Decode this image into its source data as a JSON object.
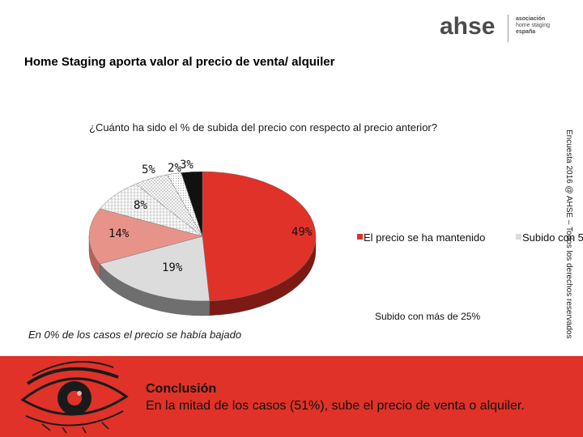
{
  "logo": {
    "word": "ahse",
    "line1": "asociación",
    "line2": "home staging",
    "line3": "españa"
  },
  "header": {
    "title": "Home Staging aporta valor al precio de venta/ alquiler"
  },
  "side_note": "Encuesta 2016 @ AHSE – Todos los derechos reservados",
  "bottom_note": "En 0% de los casos el precio se había bajado",
  "conclusion": {
    "title": "Conclusión",
    "text": "En la mitad de los casos (51%), sube el precio de venta o alquiler."
  },
  "chart_data": {
    "type": "pie",
    "title": "¿Cuánto ha sido el % de subida del precio con respecto al precio anterior?",
    "slices": [
      {
        "name": "El precio se ha mantenido",
        "value": 49,
        "label": "49%",
        "color": "#e03228"
      },
      {
        "name": "Subido con 5",
        "value": 19,
        "label": "19%",
        "color": "#dcdcdc"
      },
      {
        "name": "",
        "value": 14,
        "label": "14%",
        "color": "#e8938a"
      },
      {
        "name": "",
        "value": 8,
        "label": "8%",
        "color": "#ececec"
      },
      {
        "name": "",
        "value": 5,
        "label": "5%",
        "color": "#f4f4f4"
      },
      {
        "name": "",
        "value": 2,
        "label": "2%",
        "color": "#ffffff"
      },
      {
        "name": "Subido con más de 25%",
        "value": 3,
        "label": "3%",
        "color": "#111111"
      }
    ],
    "legend": [
      "El precio se ha mantenido",
      "Subido con 5"
    ],
    "legend_extra": "Subido con más de 25%"
  }
}
